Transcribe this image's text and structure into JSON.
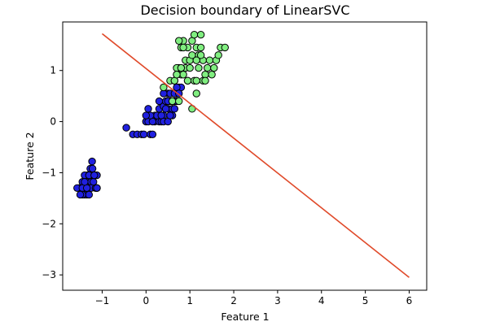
{
  "chart_data": {
    "type": "scatter",
    "title": "Decision boundary of LinearSVC",
    "xlabel": "Feature 1",
    "ylabel": "Feature 2",
    "xlim": [
      -1.9,
      6.4
    ],
    "ylim": [
      -3.3,
      1.95
    ],
    "grid": false,
    "legend": "none",
    "x_ticks": [
      -1,
      0,
      1,
      2,
      3,
      4,
      5,
      6
    ],
    "x_tick_labels": [
      "−1",
      "0",
      "1",
      "2",
      "3",
      "4",
      "5",
      "6"
    ],
    "y_ticks": [
      -3,
      -2,
      -1,
      0,
      1
    ],
    "y_tick_labels": [
      "−3",
      "−2",
      "−1",
      "0",
      "1"
    ],
    "colors": {
      "class_0": "#2020e0",
      "class_1": "#2020e0",
      "class_2": "#80ee80",
      "boundary": "#e04a2a",
      "marker_edge": "#000000"
    },
    "boundary_line": {
      "x": [
        -1.0,
        6.0
      ],
      "y": [
        1.72,
        -3.05
      ]
    },
    "series": [
      {
        "color_key": "class_0",
        "x": [
          -1.23,
          -1.27,
          -1.33,
          -1.4,
          -1.45,
          -1.5,
          -1.52,
          -1.57,
          -1.3,
          -1.23,
          -1.17,
          -1.12,
          -1.28,
          -1.35,
          -1.4,
          -1.45,
          -1.3,
          -1.25,
          -1.2,
          -1.35,
          -1.4,
          -1.3,
          -1.25,
          -1.15,
          -1.12,
          -1.28,
          -1.35,
          -1.4,
          -1.45,
          -1.5,
          -1.3,
          -1.22,
          -1.18,
          -1.12
        ],
        "y": [
          -0.78,
          -0.92,
          -1.05,
          -1.05,
          -1.18,
          -1.3,
          -1.3,
          -1.3,
          -1.18,
          -1.05,
          -1.05,
          -1.05,
          -1.18,
          -1.18,
          -1.3,
          -1.3,
          -1.3,
          -1.18,
          -1.18,
          -1.43,
          -1.43,
          -1.43,
          -1.3,
          -1.3,
          -1.3,
          -1.05,
          -1.3,
          -1.18,
          -1.43,
          -1.43,
          -1.05,
          -0.92,
          -1.05,
          -1.3
        ]
      },
      {
        "color_key": "class_1",
        "x": [
          -0.45,
          -0.3,
          -0.2,
          -0.1,
          -0.05,
          0.0,
          0.05,
          0.1,
          0.15,
          0.2,
          0.25,
          0.3,
          0.35,
          0.4,
          0.45,
          0.5,
          0.55,
          0.6,
          0.65,
          0.7,
          0.75,
          0.8,
          0.2,
          0.25,
          0.3,
          0.35,
          0.4,
          0.45,
          0.5,
          0.55,
          0.6,
          0.65,
          0.7,
          0.15,
          0.1,
          0.0,
          0.05,
          0.4,
          0.5,
          0.6,
          0.3,
          0.45,
          0.55,
          0.65,
          0.7,
          0.75,
          0.5,
          0.4
        ],
        "y": [
          -0.12,
          -0.25,
          -0.25,
          -0.25,
          -0.25,
          0.0,
          0.0,
          -0.25,
          -0.25,
          0.0,
          0.12,
          0.0,
          0.0,
          0.12,
          0.25,
          0.25,
          0.4,
          0.25,
          0.4,
          0.55,
          0.67,
          0.67,
          0.12,
          0.12,
          0.25,
          0.12,
          0.3,
          0.4,
          0.55,
          0.55,
          0.4,
          0.55,
          0.4,
          0.0,
          0.12,
          0.12,
          0.25,
          0.0,
          0.0,
          0.12,
          0.4,
          0.25,
          0.12,
          0.25,
          0.67,
          0.55,
          0.4,
          0.55
        ]
      },
      {
        "color_key": "class_2",
        "x": [
          0.4,
          0.55,
          0.65,
          0.7,
          0.75,
          0.8,
          0.85,
          0.9,
          0.95,
          1.0,
          1.05,
          1.1,
          1.15,
          1.2,
          1.25,
          1.3,
          1.35,
          1.4,
          1.45,
          1.5,
          1.55,
          1.6,
          1.65,
          1.7,
          1.8,
          0.75,
          0.8,
          0.85,
          0.95,
          1.05,
          1.15,
          1.2,
          1.25,
          0.7,
          0.65,
          0.9,
          1.0,
          1.1,
          1.3,
          0.6,
          0.75,
          1.05,
          0.85,
          1.15,
          0.95,
          1.35,
          1.25,
          0.8,
          0.7,
          1.15
        ],
        "y": [
          0.67,
          0.8,
          0.8,
          0.92,
          1.05,
          1.45,
          1.58,
          1.2,
          1.45,
          1.2,
          1.58,
          1.7,
          1.45,
          1.3,
          1.7,
          1.2,
          0.92,
          1.05,
          1.2,
          0.92,
          1.05,
          1.2,
          1.3,
          1.45,
          1.45,
          1.58,
          0.92,
          0.92,
          0.8,
          1.3,
          1.2,
          1.05,
          1.45,
          1.05,
          0.8,
          1.05,
          1.05,
          0.8,
          0.8,
          0.4,
          0.4,
          0.25,
          1.45,
          0.8,
          0.8,
          0.8,
          1.3,
          1.05,
          0.92,
          0.55
        ]
      }
    ]
  }
}
